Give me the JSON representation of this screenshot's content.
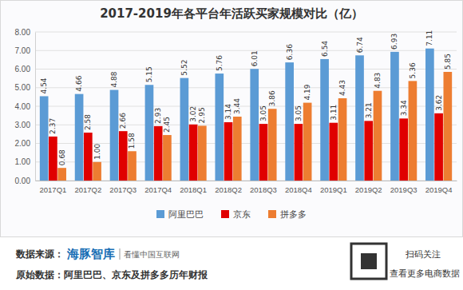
{
  "chart_data": {
    "type": "bar",
    "title": "2017-2019年各平台年活跃买家规模对比（亿）",
    "categories": [
      "2017Q1",
      "2017Q2",
      "2017Q3",
      "2017Q4",
      "2018Q1",
      "2018Q2",
      "2018Q3",
      "2018Q4",
      "2019Q1",
      "2019Q2",
      "2019Q3",
      "2019Q4"
    ],
    "series": [
      {
        "name": "阿里巴巴",
        "color": "#5b9bd5",
        "values": [
          4.54,
          4.66,
          4.88,
          5.15,
          5.52,
          5.76,
          6.01,
          6.36,
          6.54,
          6.74,
          6.93,
          7.11
        ]
      },
      {
        "name": "京东",
        "color": "#e00000",
        "values": [
          2.37,
          2.58,
          2.66,
          2.93,
          3.02,
          3.14,
          3.05,
          3.05,
          3.11,
          3.21,
          3.34,
          3.62
        ]
      },
      {
        "name": "拼多多",
        "color": "#ed7d31",
        "values": [
          0.68,
          1.0,
          1.58,
          2.45,
          2.95,
          3.44,
          3.86,
          4.19,
          4.43,
          4.83,
          5.36,
          5.85
        ],
        "value_labels": [
          "0.68",
          "1.00",
          "1.58",
          "2.45",
          "2.95",
          "3.44",
          "3.86",
          "4.19",
          "4.43",
          "4.83",
          "5.36",
          "5.85"
        ]
      }
    ],
    "ylim": [
      0,
      8
    ],
    "yticks": [
      {
        "value": 0,
        "label": "0.00"
      },
      {
        "value": 1,
        "label": "1.00"
      },
      {
        "value": 2,
        "label": "2.00"
      },
      {
        "value": 3,
        "label": "3.00"
      },
      {
        "value": 4,
        "label": "4.00"
      },
      {
        "value": 5,
        "label": "5.00"
      },
      {
        "value": 6,
        "label": "6.00"
      },
      {
        "value": 7,
        "label": "7.00"
      },
      {
        "value": 8,
        "label": "8.00"
      }
    ],
    "grid": true,
    "legend": "bottom",
    "data_labels": true
  },
  "footer": {
    "source_label": "数据来源：",
    "brand": "海豚智库",
    "slogan": "看懂中国互联网",
    "original": "原始数据：阿里巴巴、京东及拼多多历年财报",
    "scan": "扫码关注",
    "more": "查看更多电商数据"
  }
}
